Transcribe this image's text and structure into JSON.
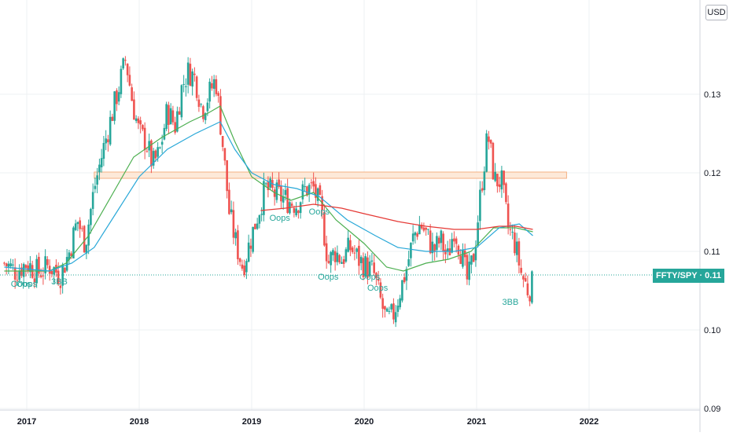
{
  "currency_button": "USD",
  "symbol_badge": {
    "symbol": "FFTY/SPY",
    "separator": "·",
    "price": "0.11"
  },
  "colors": {
    "up": "#26a69a",
    "down": "#ef5350",
    "ma_red": "#e53935",
    "ma_green": "#4caf50",
    "ma_blue": "#29a8d8",
    "zone_fill": "#fde9d9",
    "zone_stroke": "#f4b183",
    "grid": "#eef0f3",
    "text": "#131722",
    "price_line": "#26a69a"
  },
  "chart_data": {
    "type": "candlestick",
    "title": "",
    "xlabel": "",
    "ylabel": "",
    "x_ticks": [
      "2017",
      "2018",
      "2019",
      "2020",
      "2021",
      "2022"
    ],
    "y_ticks": [
      "0.09",
      "0.10",
      "0.11",
      "0.12",
      "0.13"
    ],
    "ylim": [
      0.0887,
      0.1423
    ],
    "x_range": [
      "2016-11",
      "2022-06"
    ],
    "grid": true,
    "resistance_zone": {
      "low": 0.1193,
      "high": 0.1201,
      "from": "2017.6",
      "to": "2021.8"
    },
    "last_price_line": 0.107,
    "annotations": [
      {
        "text": "Oops",
        "x": 2016.95,
        "y": 0.1055
      },
      {
        "text": "Oops",
        "x": 2017.0,
        "y": 0.1055
      },
      {
        "text": "3BB",
        "x": 2017.29,
        "y": 0.1058
      },
      {
        "text": "Oops",
        "x": 2019.25,
        "y": 0.1139
      },
      {
        "text": "Oops",
        "x": 2019.6,
        "y": 0.1147
      },
      {
        "text": "Oops",
        "x": 2019.68,
        "y": 0.1064
      },
      {
        "text": "Oops",
        "x": 2020.05,
        "y": 0.1064
      },
      {
        "text": "Oops",
        "x": 2020.12,
        "y": 0.105
      },
      {
        "text": "3BB",
        "x": 2021.3,
        "y": 0.1032
      }
    ],
    "series": [
      {
        "name": "",
        "kind": "candles",
        "close_path": [
          [
            2016.8,
            0.1085
          ],
          [
            2016.9,
            0.1075
          ],
          [
            2017.0,
            0.1085
          ],
          [
            2017.1,
            0.1073
          ],
          [
            2017.2,
            0.1082
          ],
          [
            2017.3,
            0.107
          ],
          [
            2017.38,
            0.11
          ],
          [
            2017.45,
            0.114
          ],
          [
            2017.52,
            0.111
          ],
          [
            2017.6,
            0.118
          ],
          [
            2017.68,
            0.123
          ],
          [
            2017.75,
            0.127
          ],
          [
            2017.82,
            0.131
          ],
          [
            2017.88,
            0.1345
          ],
          [
            2017.94,
            0.129
          ],
          [
            2018.0,
            0.125
          ],
          [
            2018.06,
            0.124
          ],
          [
            2018.12,
            0.121
          ],
          [
            2018.18,
            0.1225
          ],
          [
            2018.25,
            0.128
          ],
          [
            2018.32,
            0.126
          ],
          [
            2018.38,
            0.131
          ],
          [
            2018.44,
            0.133
          ],
          [
            2018.5,
            0.132
          ],
          [
            2018.56,
            0.128
          ],
          [
            2018.62,
            0.13
          ],
          [
            2018.68,
            0.132
          ],
          [
            2018.74,
            0.124
          ],
          [
            2018.8,
            0.115
          ],
          [
            2018.86,
            0.111
          ],
          [
            2018.92,
            0.108
          ],
          [
            2019.0,
            0.112
          ],
          [
            2019.06,
            0.115
          ],
          [
            2019.12,
            0.118
          ],
          [
            2019.18,
            0.1175
          ],
          [
            2019.25,
            0.117
          ],
          [
            2019.32,
            0.1165
          ],
          [
            2019.4,
            0.116
          ],
          [
            2019.48,
            0.118
          ],
          [
            2019.55,
            0.118
          ],
          [
            2019.62,
            0.115
          ],
          [
            2019.68,
            0.1085
          ],
          [
            2019.74,
            0.11
          ],
          [
            2019.8,
            0.109
          ],
          [
            2019.88,
            0.1105
          ],
          [
            2019.95,
            0.109
          ],
          [
            2020.02,
            0.108
          ],
          [
            2020.08,
            0.1075
          ],
          [
            2020.14,
            0.104
          ],
          [
            2020.2,
            0.101
          ],
          [
            2020.26,
            0.102
          ],
          [
            2020.32,
            0.105
          ],
          [
            2020.38,
            0.108
          ],
          [
            2020.44,
            0.112
          ],
          [
            2020.5,
            0.1135
          ],
          [
            2020.56,
            0.112
          ],
          [
            2020.62,
            0.11
          ],
          [
            2020.68,
            0.1115
          ],
          [
            2020.74,
            0.109
          ],
          [
            2020.8,
            0.113
          ],
          [
            2020.86,
            0.11
          ],
          [
            2020.92,
            0.106
          ],
          [
            2020.98,
            0.11
          ],
          [
            2021.04,
            0.118
          ],
          [
            2021.1,
            0.125
          ],
          [
            2021.16,
            0.119
          ],
          [
            2021.22,
            0.119
          ],
          [
            2021.28,
            0.113
          ],
          [
            2021.34,
            0.111
          ],
          [
            2021.4,
            0.107
          ],
          [
            2021.46,
            0.105
          ],
          [
            2021.5,
            0.106
          ]
        ]
      },
      {
        "name": "",
        "kind": "line",
        "color_key": "ma_green",
        "points": [
          [
            2016.8,
            0.1075
          ],
          [
            2017.2,
            0.1075
          ],
          [
            2017.35,
            0.1085
          ],
          [
            2017.55,
            0.112
          ],
          [
            2017.75,
            0.117
          ],
          [
            2017.95,
            0.122
          ],
          [
            2018.2,
            0.1245
          ],
          [
            2018.45,
            0.1265
          ],
          [
            2018.6,
            0.1275
          ],
          [
            2018.72,
            0.1285
          ],
          [
            2018.85,
            0.124
          ],
          [
            2019.0,
            0.1195
          ],
          [
            2019.2,
            0.1175
          ],
          [
            2019.35,
            0.1165
          ],
          [
            2019.55,
            0.1175
          ],
          [
            2019.75,
            0.114
          ],
          [
            2020.0,
            0.111
          ],
          [
            2020.2,
            0.108
          ],
          [
            2020.35,
            0.1075
          ],
          [
            2020.55,
            0.1085
          ],
          [
            2020.75,
            0.109
          ],
          [
            2020.95,
            0.11
          ],
          [
            2021.15,
            0.113
          ],
          [
            2021.35,
            0.113
          ],
          [
            2021.5,
            0.1125
          ]
        ]
      },
      {
        "name": "",
        "kind": "line",
        "color_key": "ma_blue",
        "points": [
          [
            2016.8,
            0.108
          ],
          [
            2017.2,
            0.1075
          ],
          [
            2017.4,
            0.1085
          ],
          [
            2017.6,
            0.1105
          ],
          [
            2017.8,
            0.115
          ],
          [
            2018.0,
            0.1195
          ],
          [
            2018.25,
            0.123
          ],
          [
            2018.5,
            0.125
          ],
          [
            2018.72,
            0.1265
          ],
          [
            2018.85,
            0.123
          ],
          [
            2019.0,
            0.12
          ],
          [
            2019.2,
            0.1185
          ],
          [
            2019.4,
            0.118
          ],
          [
            2019.6,
            0.117
          ],
          [
            2019.85,
            0.114
          ],
          [
            2020.1,
            0.112
          ],
          [
            2020.3,
            0.1105
          ],
          [
            2020.55,
            0.11
          ],
          [
            2020.8,
            0.11
          ],
          [
            2021.0,
            0.1105
          ],
          [
            2021.2,
            0.113
          ],
          [
            2021.38,
            0.1135
          ],
          [
            2021.5,
            0.112
          ]
        ]
      },
      {
        "name": "",
        "kind": "line",
        "color_key": "ma_red",
        "points": [
          [
            2019.08,
            0.1152
          ],
          [
            2019.3,
            0.1155
          ],
          [
            2019.55,
            0.116
          ],
          [
            2019.8,
            0.1155
          ],
          [
            2020.0,
            0.1148
          ],
          [
            2020.3,
            0.1138
          ],
          [
            2020.55,
            0.1132
          ],
          [
            2020.8,
            0.1128
          ],
          [
            2021.0,
            0.1128
          ],
          [
            2021.2,
            0.1132
          ],
          [
            2021.35,
            0.1132
          ],
          [
            2021.5,
            0.1128
          ]
        ]
      }
    ]
  }
}
